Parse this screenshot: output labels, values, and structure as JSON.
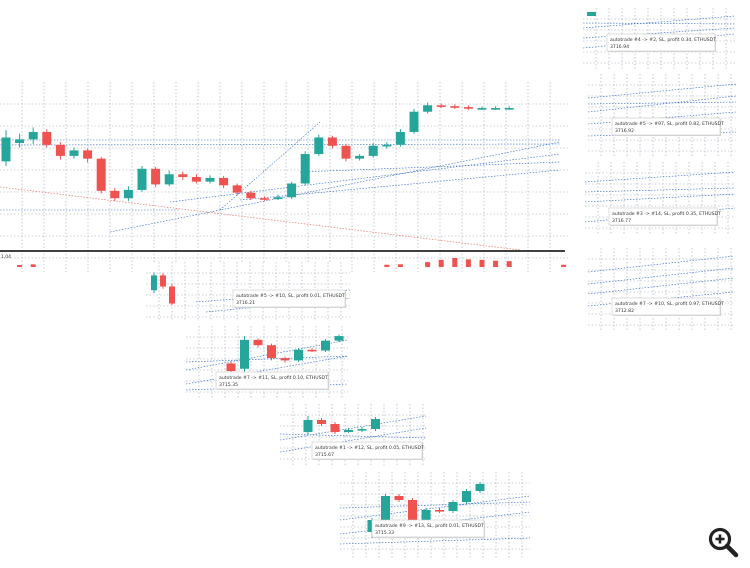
{
  "colors": {
    "bull": "#26a69a",
    "bear": "#ef5350",
    "grid": "#9aa7b3",
    "trend": "#2b64c8",
    "downtrend": "#e7614b",
    "axis": "#000000",
    "tooltip_border": "#c8c8c8"
  },
  "chart_data": [
    {
      "type": "candlestick",
      "name": "main",
      "y_axis_tick_label": "-",
      "price_tag": "1,04",
      "candles": [
        {
          "o": 3714.2,
          "c": 3716.8,
          "h": 3717.6,
          "l": 3713.7
        },
        {
          "o": 3716.2,
          "c": 3716.6,
          "h": 3717.2,
          "l": 3715.7
        },
        {
          "o": 3716.6,
          "c": 3717.4,
          "h": 3717.9,
          "l": 3716.1
        },
        {
          "o": 3717.4,
          "c": 3716.0,
          "h": 3717.7,
          "l": 3715.7
        },
        {
          "o": 3716.0,
          "c": 3714.8,
          "h": 3716.3,
          "l": 3714.4
        },
        {
          "o": 3714.8,
          "c": 3715.4,
          "h": 3715.7,
          "l": 3714.5
        },
        {
          "o": 3715.4,
          "c": 3714.5,
          "h": 3715.6,
          "l": 3714.1
        },
        {
          "o": 3714.5,
          "c": 3711.0,
          "h": 3714.7,
          "l": 3710.7
        },
        {
          "o": 3711.0,
          "c": 3710.2,
          "h": 3711.3,
          "l": 3709.9
        },
        {
          "o": 3710.2,
          "c": 3711.1,
          "h": 3711.5,
          "l": 3709.9
        },
        {
          "o": 3711.1,
          "c": 3713.4,
          "h": 3713.7,
          "l": 3710.9
        },
        {
          "o": 3713.4,
          "c": 3711.7,
          "h": 3713.6,
          "l": 3711.4
        },
        {
          "o": 3711.7,
          "c": 3712.8,
          "h": 3713.2,
          "l": 3711.5
        },
        {
          "o": 3712.8,
          "c": 3712.5,
          "h": 3713.1,
          "l": 3712.2
        },
        {
          "o": 3712.5,
          "c": 3712.0,
          "h": 3712.8,
          "l": 3711.8
        },
        {
          "o": 3712.0,
          "c": 3712.4,
          "h": 3712.7,
          "l": 3711.8
        },
        {
          "o": 3712.4,
          "c": 3711.6,
          "h": 3712.6,
          "l": 3711.3
        },
        {
          "o": 3711.6,
          "c": 3710.8,
          "h": 3711.8,
          "l": 3710.5
        },
        {
          "o": 3710.8,
          "c": 3710.2,
          "h": 3711.0,
          "l": 3710.0
        },
        {
          "o": 3710.2,
          "c": 3710.1,
          "h": 3710.4,
          "l": 3709.9
        },
        {
          "o": 3710.1,
          "c": 3710.3,
          "h": 3710.6,
          "l": 3710.0
        },
        {
          "o": 3710.3,
          "c": 3711.8,
          "h": 3712.0,
          "l": 3710.1
        },
        {
          "o": 3711.8,
          "c": 3715.0,
          "h": 3715.3,
          "l": 3711.6
        },
        {
          "o": 3715.0,
          "c": 3716.8,
          "h": 3717.1,
          "l": 3714.8
        },
        {
          "o": 3716.8,
          "c": 3715.9,
          "h": 3717.0,
          "l": 3715.6
        },
        {
          "o": 3715.9,
          "c": 3714.5,
          "h": 3716.1,
          "l": 3714.2
        },
        {
          "o": 3714.5,
          "c": 3714.8,
          "h": 3715.0,
          "l": 3714.3
        },
        {
          "o": 3714.8,
          "c": 3715.9,
          "h": 3716.2,
          "l": 3714.6
        },
        {
          "o": 3715.9,
          "c": 3716.0,
          "h": 3716.3,
          "l": 3715.6
        },
        {
          "o": 3716.0,
          "c": 3717.4,
          "h": 3717.7,
          "l": 3715.8
        },
        {
          "o": 3717.4,
          "c": 3719.6,
          "h": 3719.9,
          "l": 3717.2
        },
        {
          "o": 3719.6,
          "c": 3720.3,
          "h": 3720.6,
          "l": 3719.4
        },
        {
          "o": 3720.3,
          "c": 3720.2,
          "h": 3720.5,
          "l": 3720.0
        },
        {
          "o": 3720.2,
          "c": 3720.1,
          "h": 3720.4,
          "l": 3719.9
        },
        {
          "o": 3720.1,
          "c": 3720.0,
          "h": 3720.3,
          "l": 3719.8
        },
        {
          "o": 3720.0,
          "c": 3720.0,
          "h": 3720.2,
          "l": 3719.8
        },
        {
          "o": 3720.0,
          "c": 3720.0,
          "h": 3720.2,
          "l": 3719.8
        },
        {
          "o": 3720.0,
          "c": 3720.0,
          "h": 3720.2,
          "l": 3719.8
        },
        {
          "o": 3720.6,
          "c": 3719.6,
          "h": 3720.8,
          "l": 3719.4
        },
        {
          "o": 3718.4,
          "c": 3720.4,
          "h": 3720.6,
          "l": 3716.9
        }
      ],
      "volume_bars": [
        {
          "index": 1,
          "dir": "bear",
          "h": 0.2
        },
        {
          "index": 2,
          "dir": "bear",
          "h": 0.3
        },
        {
          "index": 25,
          "dir": "bear",
          "h": 0.3
        },
        {
          "index": 28,
          "dir": "bear",
          "h": 0.25
        },
        {
          "index": 29,
          "dir": "bear",
          "h": 0.3
        },
        {
          "index": 31,
          "dir": "bear",
          "h": 0.55
        },
        {
          "index": 32,
          "dir": "bear",
          "h": 0.8
        },
        {
          "index": 33,
          "dir": "bear",
          "h": 1.0
        },
        {
          "index": 34,
          "dir": "bear",
          "h": 0.85
        },
        {
          "index": 35,
          "dir": "bear",
          "h": 0.8
        },
        {
          "index": 36,
          "dir": "bear",
          "h": 0.7
        },
        {
          "index": 37,
          "dir": "bear",
          "h": 0.65
        },
        {
          "index": 41,
          "dir": "bear",
          "h": 0.25
        }
      ],
      "hidden_candles": [
        38,
        39,
        40
      ]
    },
    {
      "type": "candlestick",
      "name": "zoom-autotrade-5",
      "candles": [
        {
          "o": 3714.0,
          "c": 3716.0,
          "h": 3716.4,
          "l": 3713.6
        },
        {
          "o": 3716.0,
          "c": 3714.5,
          "h": 3716.3,
          "l": 3714.2
        },
        {
          "o": 3714.5,
          "c": 3712.2,
          "h": 3714.8,
          "l": 3712.0
        }
      ]
    },
    {
      "type": "candlestick",
      "name": "zoom-autotrade-7",
      "candles": [
        {
          "o": 3713.2,
          "c": 3712.2,
          "h": 3713.4,
          "l": 3711.6
        },
        {
          "o": 3712.5,
          "c": 3716.3,
          "h": 3716.8,
          "l": 3712.0
        },
        {
          "o": 3716.3,
          "c": 3715.6,
          "h": 3716.5,
          "l": 3715.3
        },
        {
          "o": 3715.6,
          "c": 3713.9,
          "h": 3715.8,
          "l": 3713.6
        },
        {
          "o": 3713.9,
          "c": 3713.6,
          "h": 3714.1,
          "l": 3713.3
        },
        {
          "o": 3713.6,
          "c": 3715.0,
          "h": 3715.2,
          "l": 3713.4
        },
        {
          "o": 3715.0,
          "c": 3714.9,
          "h": 3715.2,
          "l": 3714.7
        },
        {
          "o": 3714.9,
          "c": 3716.2,
          "h": 3716.4,
          "l": 3714.7
        },
        {
          "o": 3716.2,
          "c": 3716.8,
          "h": 3717.0,
          "l": 3716.0
        }
      ]
    },
    {
      "type": "candlestick",
      "name": "zoom-autotrade-1",
      "candles": [
        {
          "o": 3714.0,
          "c": 3715.2,
          "h": 3715.6,
          "l": 3713.7
        },
        {
          "o": 3715.2,
          "c": 3714.8,
          "h": 3715.4,
          "l": 3714.6
        },
        {
          "o": 3714.8,
          "c": 3714.0,
          "h": 3715.0,
          "l": 3713.8
        },
        {
          "o": 3714.0,
          "c": 3714.2,
          "h": 3714.4,
          "l": 3713.9
        },
        {
          "o": 3714.2,
          "c": 3714.3,
          "h": 3714.5,
          "l": 3714.0
        },
        {
          "o": 3714.3,
          "c": 3715.3,
          "h": 3715.5,
          "l": 3714.1
        }
      ]
    },
    {
      "type": "candlestick",
      "name": "zoom-autotrade-9",
      "candles": [
        {
          "o": 3712.0,
          "c": 3713.2,
          "h": 3713.4,
          "l": 3711.4
        },
        {
          "o": 3713.2,
          "c": 3715.6,
          "h": 3715.8,
          "l": 3713.0
        },
        {
          "o": 3715.6,
          "c": 3715.2,
          "h": 3715.8,
          "l": 3715.0
        },
        {
          "o": 3715.2,
          "c": 3713.2,
          "h": 3715.4,
          "l": 3712.9
        },
        {
          "o": 3713.2,
          "c": 3714.2,
          "h": 3714.4,
          "l": 3713.0
        },
        {
          "o": 3714.2,
          "c": 3714.1,
          "h": 3714.4,
          "l": 3713.9
        },
        {
          "o": 3714.1,
          "c": 3715.0,
          "h": 3715.2,
          "l": 3713.9
        },
        {
          "o": 3715.0,
          "c": 3716.1,
          "h": 3716.3,
          "l": 3714.8
        },
        {
          "o": 3716.1,
          "c": 3716.8,
          "h": 3717.0,
          "l": 3715.9
        }
      ]
    }
  ],
  "tooltips": [
    {
      "line1": "autotrade #4 -> #2, SL, profit 0.34, ETHUSDT",
      "line2": "3716.94"
    },
    {
      "line1": "autotrade #5 -> #97, SL, profit 0.82, ETHUSDT",
      "line2": "3716.92"
    },
    {
      "line1": "autotrade #3 -> #14, SL, profit 0.35, ETHUSDT",
      "line2": "3716.77"
    },
    {
      "line1": "autotrade #7 -> #10, SL, profit 0.97, ETHUSDT",
      "line2": "3712.82"
    },
    {
      "line1": "autotrade #5 -> #10, SL, profit 0.01, ETHUSDT",
      "line2": "3716.21"
    },
    {
      "line1": "autotrade #7 -> #11, SL, profit 0.10, ETHUSDT",
      "line2": "3715.35"
    },
    {
      "line1": "autotrade #1 -> #12, SL, profit 0.05, ETHUSDT",
      "line2": "3715.67"
    },
    {
      "line1": "autotrade #9 -> #13, SL, profit 0.01, ETHUSDT",
      "line2": "3715.33"
    }
  ],
  "zoom_icon": "zoom-in-icon"
}
